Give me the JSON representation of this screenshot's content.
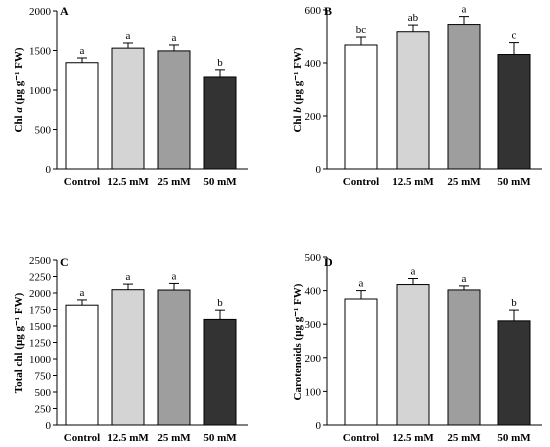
{
  "chart_data": [
    {
      "type": "bar",
      "panel": "A",
      "categories": [
        "Control",
        "12.5 mM",
        "25 mM",
        "50 mM"
      ],
      "values": [
        1345,
        1530,
        1495,
        1165
      ],
      "errors": [
        60,
        65,
        75,
        90
      ],
      "significance": [
        "a",
        "a",
        "a",
        "b"
      ],
      "ylabel": {
        "pre": "Chl ",
        "italic": "a",
        "post": " (μg g⁻¹ FW)"
      },
      "ylim": [
        0,
        2000
      ],
      "yticks": [
        0,
        500,
        1000,
        1500,
        2000
      ],
      "bar_colors": [
        "#ffffff",
        "#d4d4d4",
        "#9e9e9e",
        "#333333"
      ]
    },
    {
      "type": "bar",
      "panel": "B",
      "categories": [
        "Control",
        "12.5 mM",
        "25 mM",
        "50 mM"
      ],
      "values": [
        468,
        518,
        545,
        432
      ],
      "errors": [
        30,
        25,
        30,
        45
      ],
      "significance": [
        "bc",
        "ab",
        "a",
        "c"
      ],
      "ylabel": {
        "pre": "Chl ",
        "italic": "b",
        "post": " (μg g⁻¹ FW)"
      },
      "ylim": [
        0,
        600
      ],
      "yticks": [
        0,
        200,
        400,
        600
      ],
      "bar_colors": [
        "#ffffff",
        "#d4d4d4",
        "#9e9e9e",
        "#333333"
      ]
    },
    {
      "type": "bar",
      "panel": "C",
      "categories": [
        "Control",
        "12.5 mM",
        "25 mM",
        "50 mM"
      ],
      "values": [
        1815,
        2050,
        2045,
        1600
      ],
      "errors": [
        80,
        85,
        100,
        140
      ],
      "significance": [
        "a",
        "a",
        "a",
        "b"
      ],
      "ylabel": {
        "pre": "Total chl (μg g⁻¹ FW)",
        "italic": "",
        "post": ""
      },
      "ylim": [
        0,
        2500
      ],
      "yticks": [
        0,
        250,
        500,
        750,
        1000,
        1250,
        1500,
        1750,
        2000,
        2250,
        2500
      ],
      "bar_colors": [
        "#ffffff",
        "#d4d4d4",
        "#9e9e9e",
        "#333333"
      ]
    },
    {
      "type": "bar",
      "panel": "D",
      "categories": [
        "Control",
        "12.5 mM",
        "25 mM",
        "50 mM"
      ],
      "values": [
        375,
        418,
        402,
        310
      ],
      "errors": [
        25,
        18,
        12,
        32
      ],
      "significance": [
        "a",
        "a",
        "a",
        "b"
      ],
      "ylabel": {
        "pre": "Carotenoids (μg g⁻¹ FW)",
        "italic": "",
        "post": ""
      },
      "ylim": [
        0,
        500
      ],
      "yticks": [
        0,
        100,
        200,
        300,
        400,
        500
      ],
      "bar_colors": [
        "#ffffff",
        "#d4d4d4",
        "#9e9e9e",
        "#333333"
      ]
    }
  ]
}
